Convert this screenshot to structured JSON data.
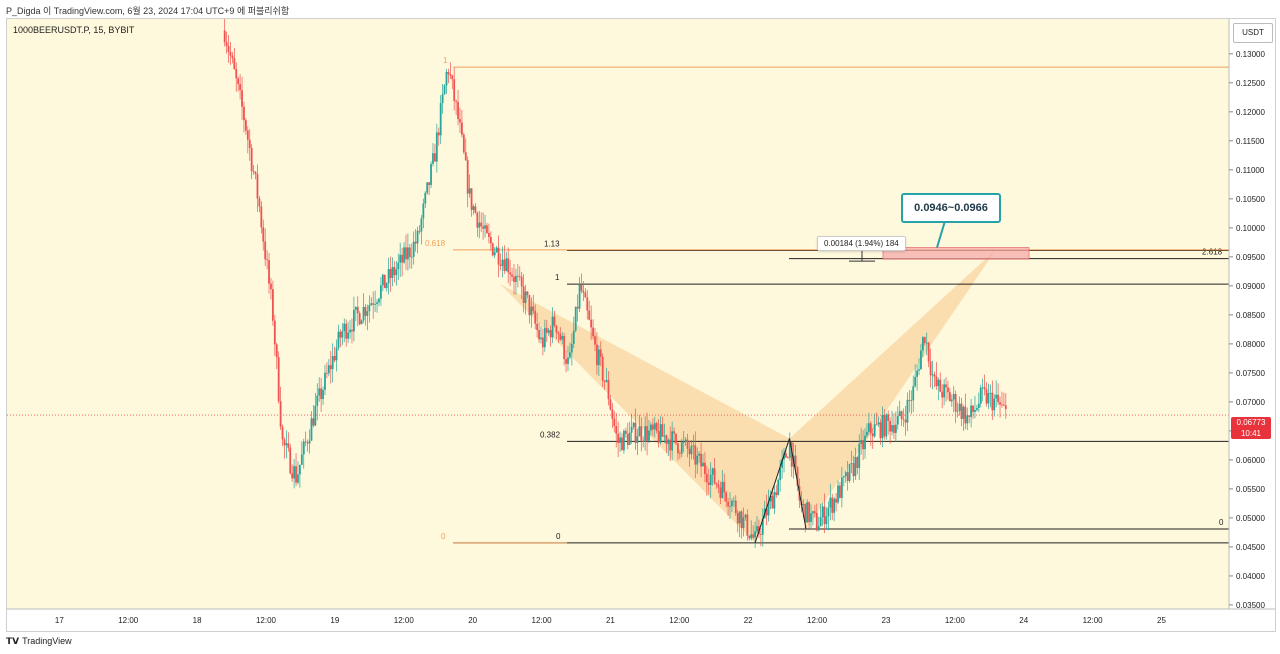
{
  "header": {
    "publish_line": "P_Digda 이 TradingView.com, 6월 23, 2024 17:04 UTC+9 에 퍼블리쉬함"
  },
  "symbol_line": "1000BEERUSDT.P, 15, BYBIT",
  "currency_label": "USDT",
  "last_price": {
    "price": "0.06773",
    "countdown": "10:41"
  },
  "callout_text": "0.0946~0.0966",
  "measure_text": "0.00184 (1.94%) 184",
  "footer_brand": "TradingView",
  "colors": {
    "background": "#fef8dc",
    "up": "#26a69a",
    "down": "#ef5350",
    "pattern": "#f8c98a",
    "zone": "#f4a6a6",
    "fib_orange": "#f0a05a",
    "callout": "#26a3a8"
  },
  "chart_data": {
    "type": "candlestick",
    "symbol": "1000BEERUSDT.P",
    "timeframe": "15",
    "exchange": "BYBIT",
    "y_axis": {
      "ylim": [
        0.0343,
        0.136
      ],
      "ticks": [
        "0.13000",
        "0.12500",
        "0.12000",
        "0.11500",
        "0.11000",
        "0.10500",
        "0.10000",
        "0.09500",
        "0.09000",
        "0.08500",
        "0.08000",
        "0.07500",
        "0.07000",
        "0.06500",
        "0.06000",
        "0.05500",
        "0.05000",
        "0.04500",
        "0.04000",
        "0.03500"
      ]
    },
    "x_axis": {
      "xlim": [
        16.62,
        25.49
      ],
      "ticks": [
        {
          "x": 17,
          "label": "17"
        },
        {
          "x": 17.5,
          "label": "12:00"
        },
        {
          "x": 18,
          "label": "18"
        },
        {
          "x": 18.5,
          "label": "12:00"
        },
        {
          "x": 19,
          "label": "19"
        },
        {
          "x": 19.5,
          "label": "12:00"
        },
        {
          "x": 20,
          "label": "20"
        },
        {
          "x": 20.5,
          "label": "12:00"
        },
        {
          "x": 21,
          "label": "21"
        },
        {
          "x": 21.5,
          "label": "12:00"
        },
        {
          "x": 22,
          "label": "22"
        },
        {
          "x": 22.5,
          "label": "12:00"
        },
        {
          "x": 23,
          "label": "23"
        },
        {
          "x": 23.5,
          "label": "12:00"
        },
        {
          "x": 24,
          "label": "24"
        },
        {
          "x": 24.5,
          "label": "12:00"
        },
        {
          "x": 25,
          "label": "25"
        }
      ]
    },
    "price_path": [
      [
        18.2,
        0.134
      ],
      [
        18.35,
        0.118
      ],
      [
        18.45,
        0.104
      ],
      [
        18.55,
        0.085
      ],
      [
        18.62,
        0.063
      ],
      [
        18.72,
        0.057
      ],
      [
        18.85,
        0.068
      ],
      [
        19.05,
        0.082
      ],
      [
        19.25,
        0.087
      ],
      [
        19.45,
        0.093
      ],
      [
        19.6,
        0.098
      ],
      [
        19.72,
        0.112
      ],
      [
        19.82,
        0.128
      ],
      [
        19.9,
        0.118
      ],
      [
        19.98,
        0.105
      ],
      [
        20.1,
        0.098
      ],
      [
        20.25,
        0.094
      ],
      [
        20.4,
        0.087
      ],
      [
        20.5,
        0.08
      ],
      [
        20.6,
        0.084
      ],
      [
        20.7,
        0.076
      ],
      [
        20.78,
        0.09
      ],
      [
        20.88,
        0.08
      ],
      [
        20.98,
        0.072
      ],
      [
        21.05,
        0.063
      ],
      [
        21.2,
        0.065
      ],
      [
        21.4,
        0.064
      ],
      [
        21.55,
        0.062
      ],
      [
        21.7,
        0.058
      ],
      [
        21.85,
        0.054
      ],
      [
        21.95,
        0.05
      ],
      [
        22.05,
        0.046
      ],
      [
        22.2,
        0.055
      ],
      [
        22.3,
        0.063
      ],
      [
        22.38,
        0.052
      ],
      [
        22.5,
        0.049
      ],
      [
        22.62,
        0.053
      ],
      [
        22.75,
        0.058
      ],
      [
        22.88,
        0.065
      ],
      [
        23.0,
        0.066
      ],
      [
        23.12,
        0.067
      ],
      [
        23.2,
        0.072
      ],
      [
        23.28,
        0.082
      ],
      [
        23.35,
        0.073
      ],
      [
        23.5,
        0.07
      ],
      [
        23.6,
        0.067
      ],
      [
        23.7,
        0.071
      ],
      [
        23.8,
        0.07
      ],
      [
        23.88,
        0.0677
      ]
    ],
    "last_price": 0.06773,
    "last_price_label": "0.06773",
    "countdown": "10:41",
    "harmonic_pattern": {
      "X": [
        20.2,
        0.0903
      ],
      "A": [
        22.05,
        0.0457
      ],
      "B": [
        22.3,
        0.0637
      ],
      "C": [
        22.42,
        0.0481
      ],
      "D": [
        23.8,
        0.0963
      ]
    },
    "fib_levels": [
      {
        "ratio": "1",
        "price": 0.0903,
        "label": "1"
      },
      {
        "ratio": "0.382",
        "price": 0.0632,
        "label": "0.382"
      },
      {
        "ratio": "0",
        "price": 0.0457,
        "label": "0",
        "color": "black"
      },
      {
        "ratio": "1.13",
        "price": 0.0961,
        "label": "1.13"
      },
      {
        "ratio": "0",
        "price": 0.0481,
        "label": "0",
        "right": true
      },
      {
        "ratio": "2.618",
        "price": 0.0947,
        "label": "2.618",
        "right": true
      },
      {
        "ratio": "1",
        "price": 0.1277,
        "label": "1",
        "color": "orange"
      },
      {
        "ratio": "0.618",
        "price": 0.0962,
        "label": "0.618",
        "color": "orange"
      },
      {
        "ratio": "0",
        "price": 0.0457,
        "label": "0",
        "color": "orange"
      }
    ],
    "target_zone": {
      "from": 0.0946,
      "to": 0.0966,
      "label": "0.0946~0.0966"
    },
    "measure": {
      "label": "0.00184 (1.94%) 184"
    }
  }
}
